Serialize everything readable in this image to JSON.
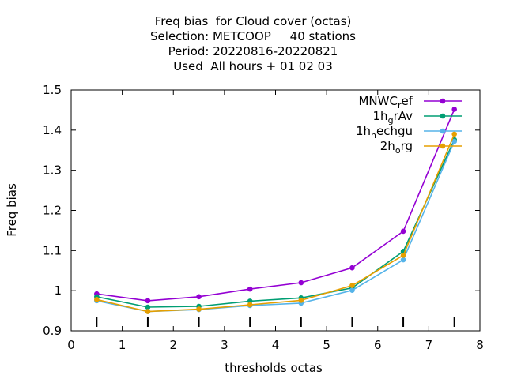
{
  "title_lines": [
    "Freq bias  for Cloud cover (octas)",
    "Selection: METCOOP     40 stations",
    "Period: 20220816-20220821",
    "Used  All hours + 01 02 03"
  ],
  "chart_data": {
    "type": "line",
    "title": "Freq bias  for Cloud cover (octas)",
    "xlabel": "thresholds octas",
    "ylabel": "Freq bias",
    "xlim": [
      0,
      8
    ],
    "ylim": [
      0.9,
      1.5
    ],
    "xticks": [
      "0",
      "1",
      "2",
      "3",
      "4",
      "5",
      "6",
      "7",
      "8"
    ],
    "yticks": [
      "0.9",
      "1",
      "1.1",
      "1.2",
      "1.3",
      "1.4",
      "1.5"
    ],
    "legend_position": "top-right",
    "grid": false,
    "x": [
      0.5,
      1.5,
      2.5,
      3.5,
      4.5,
      5.5,
      6.5,
      7.5
    ],
    "series": [
      {
        "name": "MNWC_ref",
        "legend_main": "MNWC",
        "legend_sub": "r",
        "legend_tail": "ef",
        "color": "#9400d3",
        "values": [
          0.992,
          0.975,
          0.985,
          1.004,
          1.02,
          1.057,
          1.148,
          1.452
        ]
      },
      {
        "name": "1h_grAv",
        "legend_main": "1h",
        "legend_sub": "g",
        "legend_tail": "rAv",
        "color": "#009e73",
        "values": [
          0.985,
          0.959,
          0.961,
          0.974,
          0.982,
          1.007,
          1.098,
          1.376
        ]
      },
      {
        "name": "1h_nechgu",
        "legend_main": "1h",
        "legend_sub": "n",
        "legend_tail": "echgu",
        "color": "#56b4e9",
        "values": [
          0.975,
          0.948,
          0.953,
          0.963,
          0.969,
          1.001,
          1.077,
          1.372
        ]
      },
      {
        "name": "2h_org",
        "legend_main": "2h",
        "legend_sub": "o",
        "legend_tail": "rg",
        "color": "#e69f00",
        "values": [
          0.978,
          0.948,
          0.954,
          0.965,
          0.976,
          1.013,
          1.088,
          1.39
        ]
      }
    ],
    "ensemble_ticks_at": [
      0.5,
      1.5,
      2.5,
      3.5,
      4.5,
      5.5,
      6.5,
      7.5
    ]
  }
}
